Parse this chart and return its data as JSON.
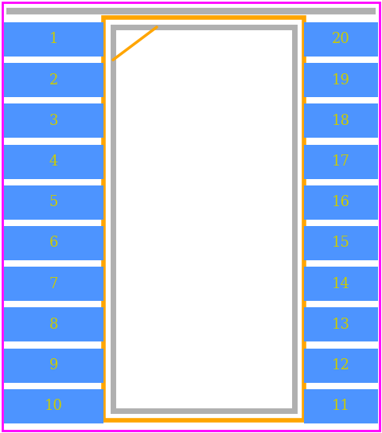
{
  "background_color": "#ffffff",
  "pin_color": "#4d94ff",
  "pin_text_color": "#cccc00",
  "body_border_color": "#ffa500",
  "body_fill_color": "#ffffff",
  "body_inner_border_color": "#b0b0b0",
  "body_inner_fill_color": "#ffffff",
  "left_pins": [
    1,
    2,
    3,
    4,
    5,
    6,
    7,
    8,
    9,
    10
  ],
  "right_pins": [
    20,
    19,
    18,
    17,
    16,
    15,
    14,
    13,
    12,
    11
  ],
  "notch_indicator_color": "#ffa500",
  "gray_line_color": "#b0b0b0",
  "magenta_border_color": "#ff00ff"
}
